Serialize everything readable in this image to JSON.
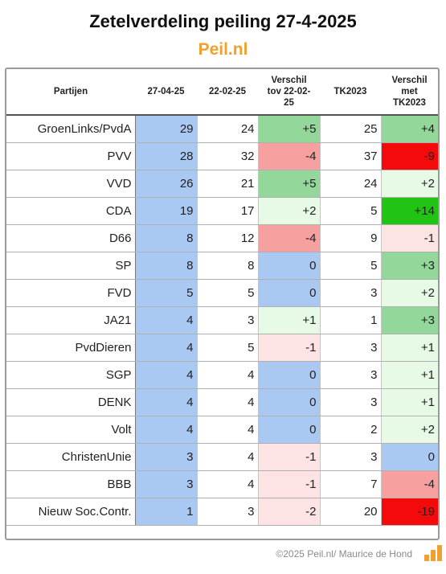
{
  "title": "Zetelverdeling peiling 27-4-2025",
  "subtitle": "Peil.nl",
  "footer": "©2025 Peil.nl/ Maurice de Hond",
  "colors": {
    "blue": "#a9c8f2",
    "green_strong": "#22c414",
    "green_mid": "#93d79a",
    "green_light": "#e6fae6",
    "red_strong": "#f40a0a",
    "red_mid": "#f6a0a0",
    "red_light": "#fde3e3",
    "accent_orange": "#f0a030"
  },
  "chart_data": {
    "type": "table",
    "columns": [
      "Partijen",
      "27-04-25",
      "22-02-25",
      "Verschil tov 22-02-25",
      "TK2023",
      "Verschil met TK2023"
    ],
    "column_labels": [
      "Partijen",
      "27-04-25",
      "22-02-25",
      "Verschil\ntov 22-02-\n25",
      "TK2023",
      "Verschil\nmet\nTK2023"
    ],
    "rows": [
      {
        "party": "GroenLinks/PvdA",
        "current": "29",
        "previous": "24",
        "diff_prev": "+5",
        "tk2023": "25",
        "diff_tk": "+4",
        "c3": "green_mid",
        "c5": "green_mid"
      },
      {
        "party": "PVV",
        "current": "28",
        "previous": "32",
        "diff_prev": "-4",
        "tk2023": "37",
        "diff_tk": "-9",
        "c3": "red_mid",
        "c5": "red_strong"
      },
      {
        "party": "VVD",
        "current": "26",
        "previous": "21",
        "diff_prev": "+5",
        "tk2023": "24",
        "diff_tk": "+2",
        "c3": "green_mid",
        "c5": "green_light"
      },
      {
        "party": "CDA",
        "current": "19",
        "previous": "17",
        "diff_prev": "+2",
        "tk2023": "5",
        "diff_tk": "+14",
        "c3": "green_light",
        "c5": "green_strong"
      },
      {
        "party": "D66",
        "current": "8",
        "previous": "12",
        "diff_prev": "-4",
        "tk2023": "9",
        "diff_tk": "-1",
        "c3": "red_mid",
        "c5": "red_light"
      },
      {
        "party": "SP",
        "current": "8",
        "previous": "8",
        "diff_prev": "0",
        "tk2023": "5",
        "diff_tk": "+3",
        "c3": "blue",
        "c5": "green_mid"
      },
      {
        "party": "FVD",
        "current": "5",
        "previous": "5",
        "diff_prev": "0",
        "tk2023": "3",
        "diff_tk": "+2",
        "c3": "blue",
        "c5": "green_light"
      },
      {
        "party": "JA21",
        "current": "4",
        "previous": "3",
        "diff_prev": "+1",
        "tk2023": "1",
        "diff_tk": "+3",
        "c3": "green_light",
        "c5": "green_mid"
      },
      {
        "party": "PvdDieren",
        "current": "4",
        "previous": "5",
        "diff_prev": "-1",
        "tk2023": "3",
        "diff_tk": "+1",
        "c3": "red_light",
        "c5": "green_light"
      },
      {
        "party": "SGP",
        "current": "4",
        "previous": "4",
        "diff_prev": "0",
        "tk2023": "3",
        "diff_tk": "+1",
        "c3": "blue",
        "c5": "green_light"
      },
      {
        "party": "DENK",
        "current": "4",
        "previous": "4",
        "diff_prev": "0",
        "tk2023": "3",
        "diff_tk": "+1",
        "c3": "blue",
        "c5": "green_light"
      },
      {
        "party": "Volt",
        "current": "4",
        "previous": "4",
        "diff_prev": "0",
        "tk2023": "2",
        "diff_tk": "+2",
        "c3": "blue",
        "c5": "green_light"
      },
      {
        "party": "ChristenUnie",
        "current": "3",
        "previous": "4",
        "diff_prev": "-1",
        "tk2023": "3",
        "diff_tk": "0",
        "c3": "red_light",
        "c5": "blue"
      },
      {
        "party": "BBB",
        "current": "3",
        "previous": "4",
        "diff_prev": "-1",
        "tk2023": "7",
        "diff_tk": "-4",
        "c3": "red_light",
        "c5": "red_mid"
      },
      {
        "party": "Nieuw Soc.Contr.",
        "current": "1",
        "previous": "3",
        "diff_prev": "-2",
        "tk2023": "20",
        "diff_tk": "-19",
        "c3": "red_light",
        "c5": "red_strong"
      }
    ]
  }
}
